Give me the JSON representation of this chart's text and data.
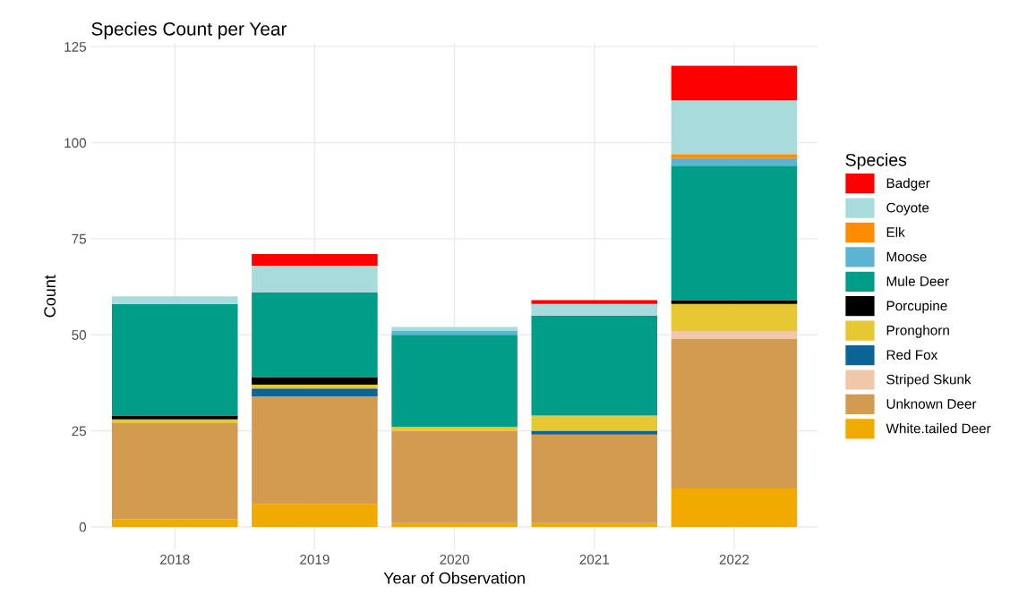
{
  "chart_data": {
    "type": "bar",
    "title": "Species Count per Year",
    "xlabel": "Year of Observation",
    "ylabel": "Count",
    "legend_title": "Species",
    "categories": [
      "2018",
      "2019",
      "2020",
      "2021",
      "2022"
    ],
    "stacked": true,
    "ylim": [
      -6,
      126
    ],
    "yticks": [
      0,
      25,
      50,
      75,
      100,
      125
    ],
    "grid": true,
    "legend": "right",
    "series": [
      {
        "name": "White.tailed Deer",
        "color": "#f0aa00",
        "values": [
          2,
          6,
          1,
          1,
          10
        ]
      },
      {
        "name": "Unknown Deer",
        "color": "#d29b50",
        "values": [
          25,
          28,
          24,
          23,
          39
        ]
      },
      {
        "name": "Striped Skunk",
        "color": "#f0c8a8",
        "values": [
          null,
          null,
          null,
          null,
          2
        ]
      },
      {
        "name": "Red Fox",
        "color": "#0a6496",
        "values": [
          null,
          2,
          null,
          1,
          null
        ]
      },
      {
        "name": "Pronghorn",
        "color": "#e8c832",
        "values": [
          1,
          1,
          1,
          4,
          7
        ]
      },
      {
        "name": "Porcupine",
        "color": "#000000",
        "values": [
          1,
          2,
          null,
          null,
          1
        ]
      },
      {
        "name": "Mule Deer",
        "color": "#009e88",
        "values": [
          29,
          22,
          24,
          26,
          35
        ]
      },
      {
        "name": "Moose",
        "color": "#5ab4d2",
        "values": [
          null,
          null,
          1,
          null,
          2
        ]
      },
      {
        "name": "Elk",
        "color": "#ff8c00",
        "values": [
          null,
          null,
          null,
          null,
          1
        ]
      },
      {
        "name": "Coyote",
        "color": "#a8dcdc",
        "values": [
          2,
          7,
          1,
          3,
          14
        ]
      },
      {
        "name": "Badger",
        "color": "#ff0000",
        "values": [
          null,
          3,
          null,
          1,
          9
        ]
      }
    ]
  }
}
